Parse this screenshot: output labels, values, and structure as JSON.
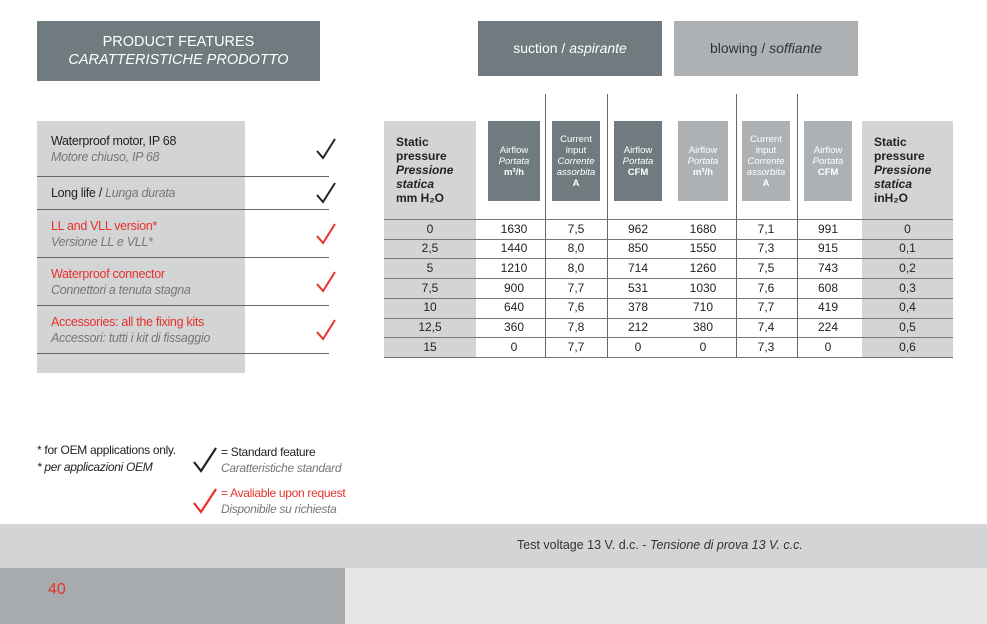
{
  "features_header": {
    "en": "PRODUCT FEATURES",
    "it": "CARATTERISTICHE PRODOTTO"
  },
  "features": [
    {
      "en": "Waterproof motor, IP 68",
      "it": "Motore chiuso, IP 68"
    },
    {
      "en": "Long life /",
      "it": "Lunga durata"
    },
    {
      "en": "LL and VLL version*",
      "it": "Versione LL e VLL*"
    },
    {
      "en": "Waterproof connector",
      "it": "Connettori a tenuta stagna"
    },
    {
      "en": "Accessories: all the fixing kits",
      "it": "Accessori: tutti i kit di fissaggio"
    }
  ],
  "groups": [
    {
      "en": "suction /",
      "it": "aspirante"
    },
    {
      "en": "blowing /",
      "it": "soffiante"
    }
  ],
  "table": {
    "columns": [
      {
        "en": "Static pressure",
        "it": "Pressione statica",
        "unit": "mm H₂O"
      },
      {
        "en": "Airflow",
        "it": "Portata",
        "unit": "m³/h"
      },
      {
        "en": "Current input",
        "it": "Corrente assorbita",
        "unit": "A"
      },
      {
        "en": "Airflow",
        "it": "Portata",
        "unit": "CFM"
      },
      {
        "en": "Airflow",
        "it": "Portata",
        "unit": "m³/h"
      },
      {
        "en": "Current input",
        "it": "Corrente assorbita",
        "unit": "A"
      },
      {
        "en": "Airflow",
        "it": "Portata",
        "unit": "CFM"
      },
      {
        "en": "Static pressure",
        "it": "Pressione statica",
        "unit": "inH₂O"
      }
    ],
    "rows": [
      [
        "0",
        "1630",
        "7,5",
        "962",
        "1680",
        "7,1",
        "991",
        "0"
      ],
      [
        "2,5",
        "1440",
        "8,0",
        "850",
        "1550",
        "7,3",
        "915",
        "0,1"
      ],
      [
        "5",
        "1210",
        "8,0",
        "714",
        "1260",
        "7,5",
        "743",
        "0,2"
      ],
      [
        "7,5",
        "900",
        "7,7",
        "531",
        "1030",
        "7,6",
        "608",
        "0,3"
      ],
      [
        "10",
        "640",
        "7,6",
        "378",
        "710",
        "7,7",
        "419",
        "0,4"
      ],
      [
        "12,5",
        "360",
        "7,8",
        "212",
        "380",
        "7,4",
        "224",
        "0,5"
      ],
      [
        "15",
        "0",
        "7,7",
        "0",
        "0",
        "7,3",
        "0",
        "0,6"
      ]
    ]
  },
  "notes": {
    "en": "* for OEM applications only.",
    "it": "* per applicazioni OEM"
  },
  "legend": [
    {
      "en": "= Standard feature",
      "it": "Caratteristiche standard"
    },
    {
      "en": "= Avaliable upon request",
      "it": "Disponibile su richiesta"
    }
  ],
  "footer": {
    "en": "Test voltage 13 V. d.c. -",
    "it": "Tensione di prova 13 V. c.c.",
    "page": "40"
  }
}
